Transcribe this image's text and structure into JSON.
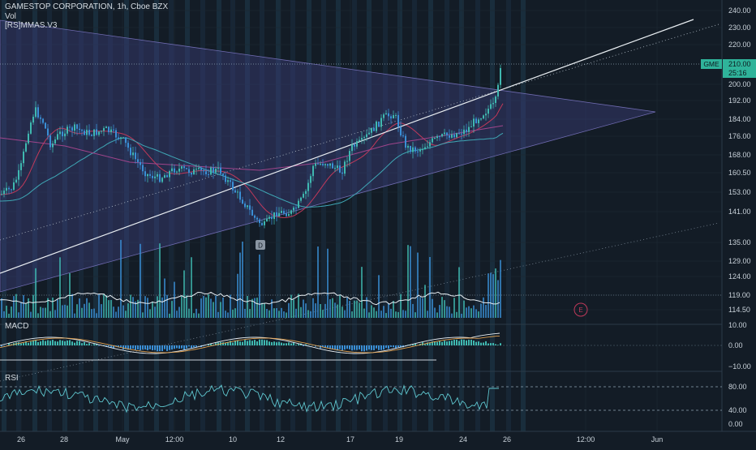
{
  "header": {
    "symbol_line": "GAMESTOP CORPORATION, 1h, Cboe BZX",
    "vol_label": "Vol",
    "study_label": "[RS]MMAS.V3"
  },
  "price_axis": {
    "ticks": [
      "240.00",
      "230.00",
      "220.00",
      "200.00",
      "192.00",
      "184.00",
      "176.00",
      "168.00",
      "160.50",
      "153.00",
      "141.00",
      "135.00",
      "129.00",
      "124.00",
      "119.00",
      "114.50"
    ],
    "badge_ticker": "GME",
    "badge_price": "210.00",
    "badge_countdown": "25:16"
  },
  "macd": {
    "label": "MACD",
    "ticks": [
      "10.00",
      "0.00",
      "−10.00"
    ]
  },
  "rsi": {
    "label": "RSI",
    "ticks": [
      "80.00",
      "40.00",
      "0.00"
    ]
  },
  "time_axis": {
    "labels": [
      "26",
      "28",
      "May",
      "12:00",
      "10",
      "12",
      "17",
      "19",
      "24",
      "26",
      "12:00",
      "Jun"
    ]
  },
  "markers": {
    "dividend": "D",
    "earnings": "E"
  },
  "colors": {
    "background": "#131c26",
    "up": "#3fb8b0",
    "down": "#3a8fd6",
    "badge": "#2fb39a",
    "triangle": "#3b3f7a"
  }
}
